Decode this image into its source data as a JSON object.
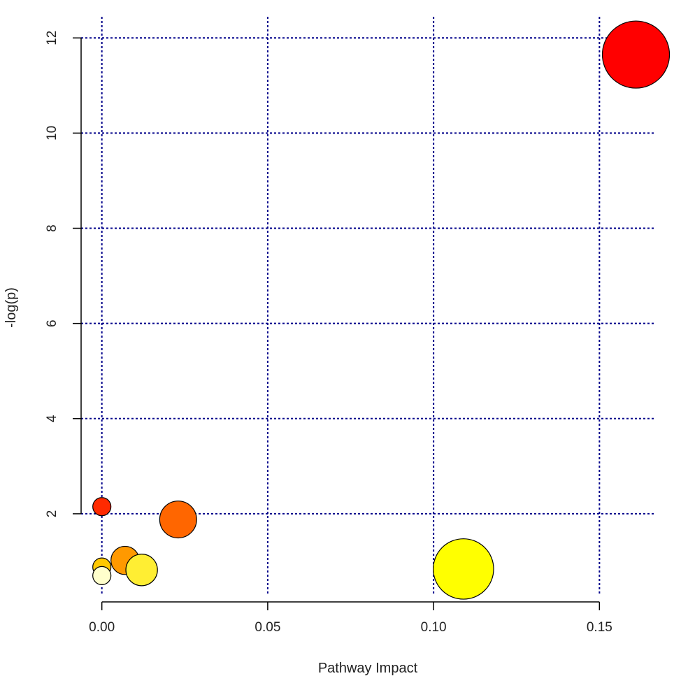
{
  "chart_data": {
    "type": "scatter",
    "title": "",
    "xlabel": "Pathway Impact",
    "ylabel": "-log(p)",
    "xlim": [
      -0.013,
      0.167
    ],
    "ylim": [
      0.28,
      12.65
    ],
    "x_ticks": [
      0.0,
      0.05,
      0.1,
      0.15
    ],
    "x_tick_labels": [
      "0.00",
      "0.05",
      "0.10",
      "0.15"
    ],
    "y_ticks": [
      2,
      4,
      6,
      8,
      10,
      12
    ],
    "y_tick_labels": [
      "2",
      "4",
      "6",
      "8",
      "10",
      "12"
    ],
    "grid": true,
    "grid_color": "#00008b",
    "grid_style": "dotted",
    "legend": false,
    "point_size_encodes": "pathway impact",
    "point_color_encodes": "-log(p) (yellow = low, red = high)",
    "points": [
      {
        "x": 0.161,
        "y": 11.65,
        "size": 1.0,
        "color": "#ff0000"
      },
      {
        "x": 0.0,
        "y": 2.15,
        "size": 0.27,
        "color": "#ff2a00"
      },
      {
        "x": 0.023,
        "y": 1.88,
        "size": 0.55,
        "color": "#ff6600"
      },
      {
        "x": 0.007,
        "y": 1.02,
        "size": 0.42,
        "color": "#ff9900"
      },
      {
        "x": 0.0,
        "y": 0.88,
        "size": 0.27,
        "color": "#ffc800"
      },
      {
        "x": 0.012,
        "y": 0.82,
        "size": 0.47,
        "color": "#ffee33"
      },
      {
        "x": 0.0,
        "y": 0.7,
        "size": 0.27,
        "color": "#ffffcc"
      },
      {
        "x": 0.109,
        "y": 0.84,
        "size": 0.9,
        "color": "#ffff00"
      }
    ]
  }
}
